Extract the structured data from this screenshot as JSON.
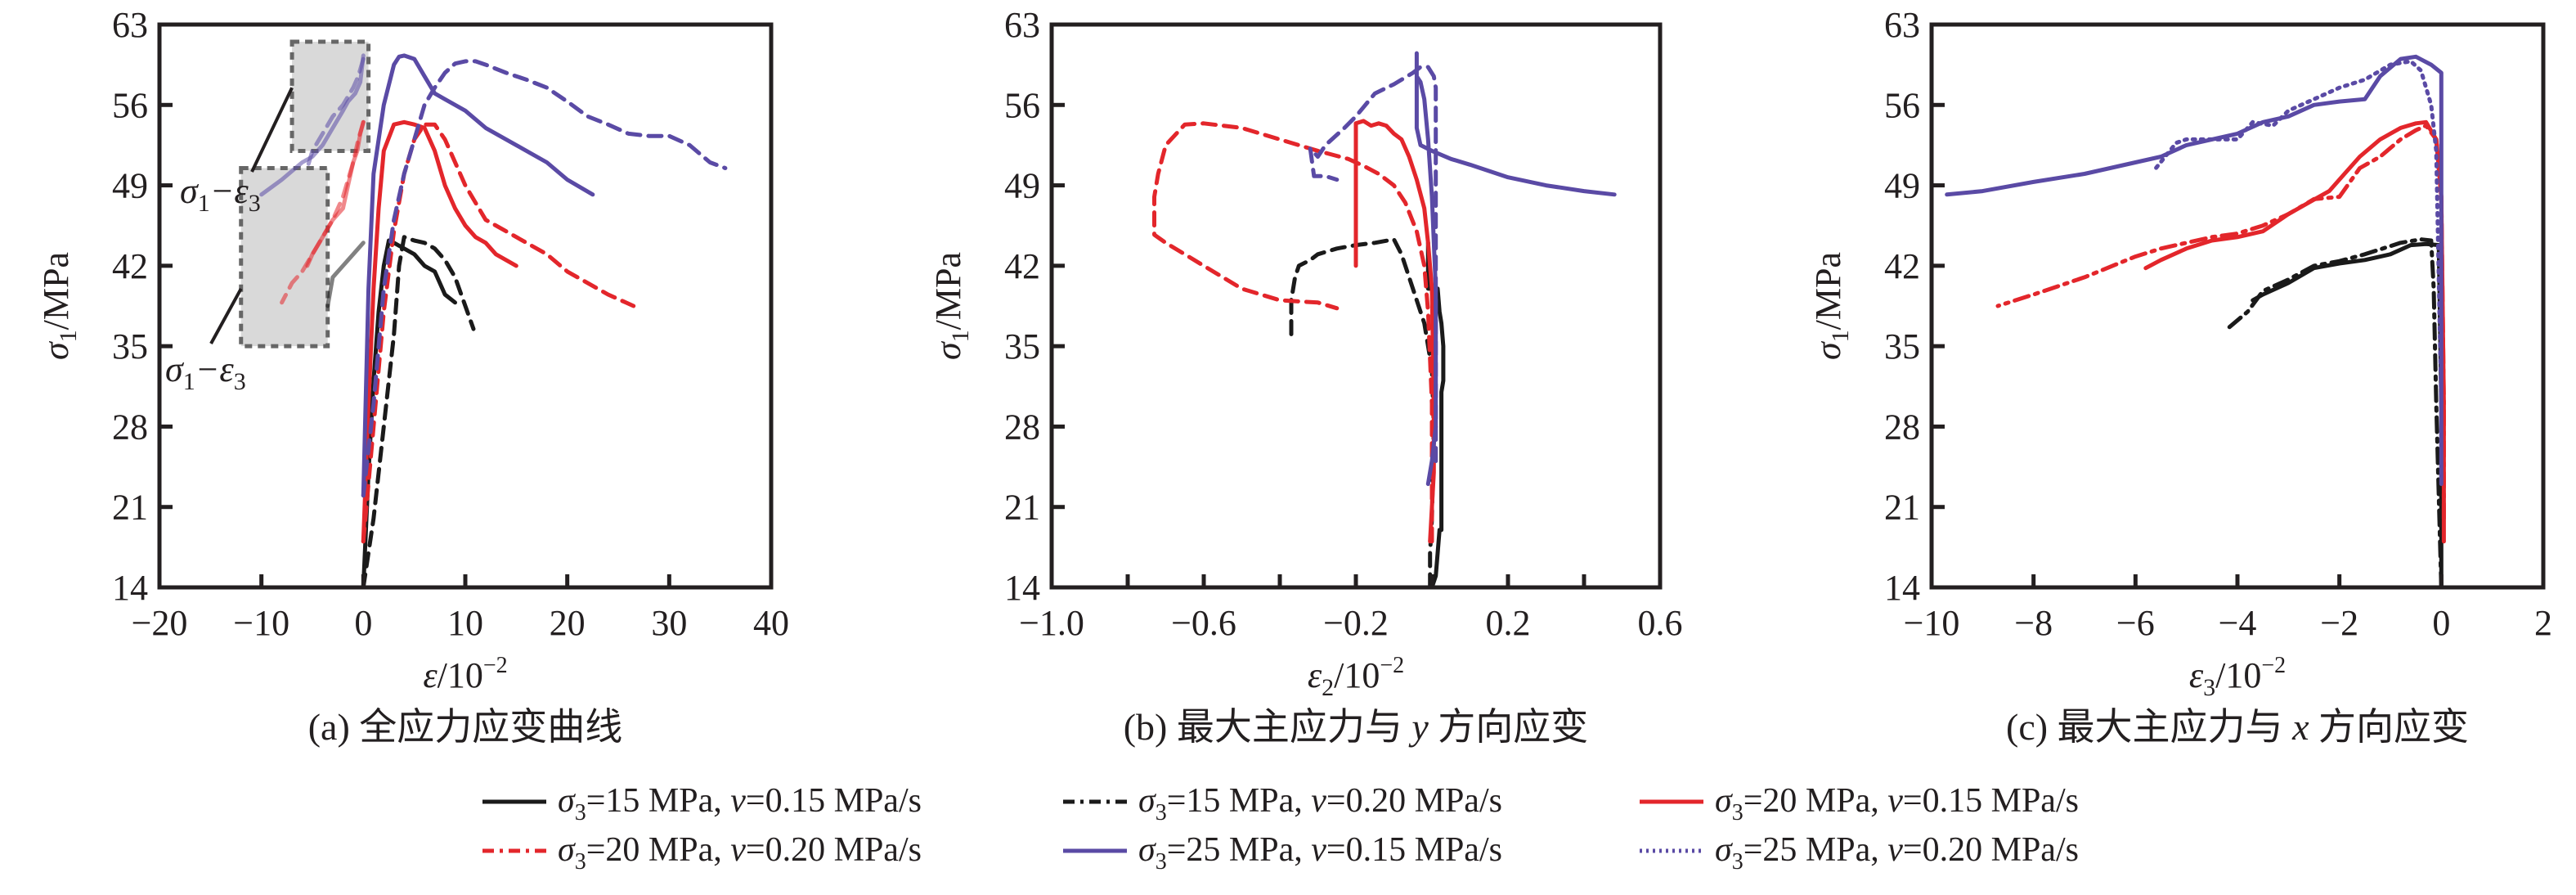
{
  "figure": {
    "legend": [
      {
        "key": "s15_v015",
        "prefix": "σ",
        "sub": "3",
        "text": "=15 MPa, ",
        "v": "v",
        "rest": "=0.15 MPa/s",
        "color": "#1a1a1a",
        "style": "solid"
      },
      {
        "key": "s15_v020",
        "prefix": "σ",
        "sub": "3",
        "text": "=15 MPa, ",
        "v": "v",
        "rest": "=0.20 MPa/s",
        "color": "#1a1a1a",
        "style": "dashdot"
      },
      {
        "key": "s20_v015",
        "prefix": "σ",
        "sub": "3",
        "text": "=20 MPa, ",
        "v": "v",
        "rest": "=0.15 MPa/s",
        "color": "#e3262b",
        "style": "solid"
      },
      {
        "key": "s20_v020",
        "prefix": "σ",
        "sub": "3",
        "text": "=20 MPa, ",
        "v": "v",
        "rest": "=0.20 MPa/s",
        "color": "#e3262b",
        "style": "dashdot"
      },
      {
        "key": "s25_v015",
        "prefix": "σ",
        "sub": "3",
        "text": "=25 MPa, ",
        "v": "v",
        "rest": "=0.15 MPa/s",
        "color": "#5a4aa5",
        "style": "solid"
      },
      {
        "key": "s25_v020",
        "prefix": "σ",
        "sub": "3",
        "text": "=25 MPa, ",
        "v": "v",
        "rest": "=0.20 MPa/s",
        "color": "#5a4aa5",
        "style": "dotted"
      }
    ]
  },
  "chart_data": [
    {
      "type": "line",
      "panel": "a",
      "title": "(a) 全应力应变曲线",
      "xlabel": "ε/10⁻²",
      "xlabel_main": "ε/10",
      "xlabel_sup": "−2",
      "ylabel": "σ₁/MPa",
      "ylabel_main": "σ",
      "ylabel_sub": "1",
      "ylabel_rest": "/MPa",
      "xlim": [
        -20,
        40
      ],
      "ylim": [
        14,
        63
      ],
      "xticks": [
        -20,
        -10,
        0,
        10,
        20,
        30,
        40
      ],
      "xtick_labels": [
        "−20",
        "−10",
        "0",
        "10",
        "20",
        "30",
        "40"
      ],
      "yticks": [
        14,
        21,
        28,
        35,
        42,
        49,
        56,
        63
      ],
      "ytick_labels": [
        "14",
        "21",
        "28",
        "35",
        "42",
        "49",
        "56",
        "63"
      ],
      "annotations": [
        {
          "text_main": "σ",
          "text_sub1": "1",
          "text_dash": "−ε",
          "text_sub2": "3",
          "box_x": [
            -7,
            0.5
          ],
          "box_y": [
            52,
            61.5
          ]
        },
        {
          "text_main": "σ",
          "text_sub1": "1",
          "text_dash": "−ε",
          "text_sub2": "3",
          "box_x": [
            -12,
            -3.5
          ],
          "box_y": [
            35,
            50.5
          ]
        }
      ],
      "series": [
        {
          "key": "s15_v015",
          "x": [
            0,
            0.5,
            1,
            1.5,
            2,
            2.5,
            3,
            4,
            5,
            6,
            7,
            8,
            9
          ],
          "y": [
            14,
            24,
            32,
            38,
            42,
            44.2,
            44,
            43.5,
            43,
            42,
            41.5,
            39.5,
            38.8
          ]
        },
        {
          "key": "s15_v015_lat",
          "faded": true,
          "x": [
            0,
            -0.5,
            -1,
            -2,
            -3,
            -3.5
          ],
          "y": [
            44,
            43.5,
            43,
            42,
            41,
            38.5
          ]
        },
        {
          "key": "s15_v020",
          "x": [
            0,
            1,
            2,
            3,
            3.5,
            4,
            5,
            6,
            7,
            8,
            9,
            10,
            10.8
          ],
          "y": [
            14,
            20,
            28,
            36,
            42,
            44.5,
            44.2,
            44,
            43.5,
            42.5,
            41,
            38.5,
            36.5
          ]
        },
        {
          "key": "s20_v015",
          "x": [
            0,
            0.5,
            1,
            1.5,
            2,
            3,
            4,
            5,
            6,
            7,
            8,
            9,
            10,
            11,
            12,
            13,
            15
          ],
          "y": [
            18,
            30,
            40,
            47,
            52,
            54.3,
            54.5,
            54.3,
            54,
            52,
            49,
            47,
            45.5,
            44.5,
            44,
            43,
            42
          ]
        },
        {
          "key": "s20_v015_lat",
          "faded": true,
          "x": [
            0,
            -0.3,
            -0.6,
            -1,
            -1.5,
            -2,
            -3,
            -4,
            -5,
            -5.5
          ],
          "y": [
            54.5,
            53.5,
            52,
            51,
            49,
            47,
            46,
            44.5,
            43,
            42
          ]
        },
        {
          "key": "s20_v020",
          "x": [
            0,
            1,
            2,
            3,
            4,
            5,
            6,
            7,
            8,
            10,
            12,
            14,
            16,
            18,
            20,
            22,
            24,
            26.5
          ],
          "y": [
            18,
            28,
            38,
            45,
            50,
            53,
            54.3,
            54.3,
            53,
            49,
            46,
            45,
            44,
            43,
            41.5,
            40.5,
            39.5,
            38.5
          ]
        },
        {
          "key": "s20_v020_lat",
          "faded": true,
          "x": [
            0,
            -0.5,
            -1,
            -2,
            -3,
            -4,
            -5,
            -6,
            -7,
            -8
          ],
          "y": [
            54.5,
            53,
            51,
            48,
            46,
            44.5,
            43,
            41.5,
            40.5,
            38.8
          ]
        },
        {
          "key": "s25_v015",
          "x": [
            0,
            0.5,
            1,
            2,
            3,
            3.5,
            4,
            5,
            6,
            7,
            8,
            10,
            12,
            15,
            18,
            20,
            22.5
          ],
          "y": [
            22,
            40,
            50,
            56,
            59.5,
            60.2,
            60.3,
            60,
            58.5,
            57,
            56.5,
            55.5,
            54,
            52.5,
            51,
            49.5,
            48.2
          ]
        },
        {
          "key": "s25_v015_lat",
          "faded": true,
          "x": [
            0,
            -0.3,
            -0.8,
            -1.5,
            -2,
            -3,
            -4,
            -5,
            -6,
            -8,
            -10
          ],
          "y": [
            60.3,
            58,
            57,
            56.3,
            55.5,
            54,
            52.5,
            51.5,
            51,
            49.5,
            48.2
          ]
        },
        {
          "key": "s25_v020",
          "x": [
            0,
            1,
            2,
            3,
            4,
            5,
            6,
            7,
            8,
            9,
            10,
            11,
            12,
            14,
            16,
            18,
            20,
            22,
            24,
            26,
            28,
            30,
            32,
            34,
            35.5
          ],
          "y": [
            22,
            30,
            40,
            46,
            50,
            53,
            56,
            57.5,
            58.8,
            59.6,
            59.8,
            59.8,
            59.5,
            58.8,
            58.2,
            57.5,
            56.3,
            55,
            54.3,
            53.5,
            53.3,
            53.3,
            52.5,
            51,
            50.5
          ]
        },
        {
          "key": "s25_v020_lat",
          "faded": true,
          "x": [
            0,
            -0.5,
            -1,
            -2,
            -3,
            -4,
            -5,
            -5.5
          ],
          "y": [
            60,
            58.5,
            57.5,
            56,
            55,
            53.5,
            52,
            50.5
          ]
        }
      ]
    },
    {
      "type": "line",
      "panel": "b",
      "title": "(b) 最大主应力与 y 方向应变",
      "title_pre": "(b) 最大主应力与 ",
      "title_var": "y",
      "title_post": " 方向应变",
      "xlabel": "ε₂/10⁻²",
      "xlabel_main": "ε",
      "xlabel_sub": "2",
      "xlabel_rest": "/10",
      "xlabel_sup": "−2",
      "ylabel": "σ₁/MPa",
      "xlim": [
        -1.0,
        0.6
      ],
      "ylim": [
        14,
        63
      ],
      "xticks": [
        -1.0,
        -0.6,
        -0.2,
        0.2,
        0.6
      ],
      "xtick_labels": [
        "−1.0",
        "−0.6",
        "−0.2",
        "0.2",
        "0.6"
      ],
      "minor_xticks": [
        -0.8,
        -0.4,
        0.0,
        0.4
      ],
      "yticks": [
        14,
        21,
        28,
        35,
        42,
        49,
        56,
        63
      ],
      "ytick_labels": [
        "14",
        "21",
        "28",
        "35",
        "42",
        "49",
        "56",
        "63"
      ],
      "series": [
        {
          "key": "s15_v015",
          "x": [
            0.0,
            0.01,
            0.015,
            0.02,
            0.025,
            0.025,
            0.03,
            0.03,
            0.025,
            0.02,
            0.015,
            -0.01,
            -0.01
          ],
          "y": [
            14,
            15,
            17,
            19,
            19,
            31,
            32,
            35,
            37,
            38,
            40,
            40,
            44
          ]
        },
        {
          "key": "s15_v020",
          "x": [
            -0.005,
            -0.005,
            0.0,
            0.005,
            0.0,
            -0.01,
            -0.02,
            -0.04,
            -0.06,
            -0.08,
            -0.1,
            -0.15,
            -0.2,
            -0.25,
            -0.3,
            -0.32,
            -0.35,
            -0.36,
            -0.37,
            -0.37
          ],
          "y": [
            14,
            17,
            20,
            28,
            33,
            35,
            37,
            39,
            41,
            43,
            44.3,
            44,
            43.8,
            43.5,
            43,
            42.5,
            42,
            41,
            39,
            36
          ]
        },
        {
          "key": "s20_v015",
          "x": [
            -0.005,
            0.0,
            0.005,
            0.005,
            0.0,
            -0.01,
            -0.02,
            -0.04,
            -0.06,
            -0.08,
            -0.1,
            -0.12,
            -0.14,
            -0.16,
            -0.18,
            -0.2,
            -0.2,
            -0.2
          ],
          "y": [
            18,
            21,
            24,
            30,
            40,
            44,
            47,
            49.5,
            51.5,
            53,
            53.5,
            54.2,
            54.4,
            54.2,
            54.6,
            54.4,
            45,
            42
          ]
        },
        {
          "key": "s20_v020",
          "x": [
            0.0,
            0.0,
            -0.01,
            -0.02,
            -0.04,
            -0.07,
            -0.1,
            -0.14,
            -0.18,
            -0.22,
            -0.3,
            -0.4,
            -0.5,
            -0.6,
            -0.65,
            -0.7,
            -0.72,
            -0.73,
            -0.73,
            -0.7,
            -0.6,
            -0.5,
            -0.4,
            -0.3,
            -0.25
          ],
          "y": [
            18,
            30,
            38,
            42,
            45,
            47.5,
            49,
            50,
            50.7,
            51.3,
            52,
            53,
            54,
            54.4,
            54.3,
            52.5,
            50,
            48,
            44.7,
            44,
            42,
            40,
            39,
            38.8,
            38.3
          ]
        },
        {
          "key": "s25_v015",
          "x": [
            -0.01,
            0.0,
            0.01,
            0.01,
            0.0,
            -0.01,
            -0.02,
            -0.03,
            -0.04,
            -0.04,
            -0.04,
            -0.03,
            0.0,
            0.05,
            0.1,
            0.2,
            0.3,
            0.4,
            0.48
          ],
          "y": [
            23,
            25,
            28,
            40,
            48,
            53,
            56.5,
            58,
            58.5,
            60.5,
            54,
            52.5,
            52,
            51.3,
            50.8,
            49.7,
            49,
            48.5,
            48.2
          ]
        },
        {
          "key": "s25_v020",
          "x": [
            0.01,
            0.01,
            0.01,
            0.005,
            -0.01,
            -0.03,
            -0.05,
            -0.1,
            -0.15,
            -0.2,
            -0.23,
            -0.28,
            -0.3,
            -0.32,
            -0.31,
            -0.28,
            -0.25
          ],
          "y": [
            25,
            35,
            57.5,
            58.5,
            59.3,
            59.3,
            58.8,
            57.8,
            57,
            55,
            54,
            52.5,
            51.5,
            52.2,
            49.8,
            49.8,
            49.5
          ]
        }
      ]
    },
    {
      "type": "line",
      "panel": "c",
      "title": "(c) 最大主应力与 x 方向应变",
      "title_pre": "(c) 最大主应力与 ",
      "title_var": "x",
      "title_post": " 方向应变",
      "xlabel": "ε₃/10⁻²",
      "xlabel_main": "ε",
      "xlabel_sub": "3",
      "xlabel_rest": "/10",
      "xlabel_sup": "−2",
      "ylabel": "σ₁/MPa",
      "xlim": [
        -10,
        2
      ],
      "ylim": [
        14,
        63
      ],
      "xticks": [
        -10,
        -8,
        -6,
        -4,
        -2,
        0,
        2
      ],
      "xtick_labels": [
        "−10",
        "−8",
        "−6",
        "−4",
        "−2",
        "0",
        "2"
      ],
      "yticks": [
        14,
        21,
        28,
        35,
        42,
        49,
        56,
        63
      ],
      "ytick_labels": [
        "14",
        "21",
        "28",
        "35",
        "42",
        "49",
        "56",
        "63"
      ],
      "series": [
        {
          "key": "s15_v015",
          "x": [
            0,
            0,
            -0.05,
            -0.3,
            -0.6,
            -1,
            -1.5,
            -2,
            -2.5,
            -3,
            -3.5,
            -3.7
          ],
          "y": [
            14,
            30,
            43.8,
            43.9,
            43.8,
            43,
            42.5,
            42.2,
            41.8,
            40.5,
            39.5,
            39
          ]
        },
        {
          "key": "s15_v020",
          "x": [
            0,
            -0.1,
            -0.15,
            -0.2,
            -0.4,
            -0.8,
            -1.5,
            -2,
            -2.5,
            -3,
            -3.5,
            -3.8,
            -4.2
          ],
          "y": [
            14,
            30,
            40,
            44.2,
            44.3,
            44,
            43,
            42.4,
            42,
            40.8,
            39.8,
            38,
            36.5
          ]
        },
        {
          "key": "s20_v015",
          "x": [
            0.05,
            0.05,
            0,
            -0.1,
            -0.3,
            -0.5,
            -0.8,
            -1.2,
            -1.6,
            -1.9,
            -2.2,
            -2.6,
            -3,
            -3.5,
            -4,
            -4.5,
            -5,
            -5.5,
            -5.8
          ],
          "y": [
            18,
            30,
            48,
            53,
            54.5,
            54.4,
            54,
            53,
            51.5,
            50,
            48.5,
            47.5,
            46.5,
            45,
            44.5,
            44.2,
            43.5,
            42.5,
            41.8
          ]
        },
        {
          "key": "s20_v020",
          "x": [
            0.05,
            0.05,
            0,
            -0.1,
            -0.3,
            -0.5,
            -0.8,
            -1.2,
            -1.6,
            -2,
            -2.5,
            -3,
            -3.5,
            -4,
            -4.5,
            -5,
            -5.5,
            -6,
            -7,
            -8,
            -8.7
          ],
          "y": [
            20,
            30,
            48,
            53,
            54.2,
            53.8,
            53,
            51.5,
            50.5,
            48,
            47.8,
            46.5,
            45.5,
            44.8,
            44.5,
            44,
            43.5,
            42.8,
            41,
            39.5,
            38.5
          ]
        },
        {
          "key": "s25_v015",
          "x": [
            0,
            0,
            0,
            -0.2,
            -0.5,
            -0.8,
            -1.2,
            -1.5,
            -2,
            -2.5,
            -3,
            -3.5,
            -4,
            -4.5,
            -5,
            -5.5,
            -6,
            -6.5,
            -7,
            -8,
            -9,
            -9.7
          ],
          "y": [
            23,
            50,
            58.8,
            59.5,
            60.2,
            60,
            58.5,
            56.5,
            56.3,
            56,
            55,
            54.5,
            53.5,
            53,
            52.5,
            51.5,
            51,
            50.5,
            50,
            49.3,
            48.5,
            48.2
          ]
        },
        {
          "key": "s25_v020",
          "x": [
            0,
            -0.1,
            -0.2,
            -0.4,
            -0.6,
            -1,
            -1.5,
            -2,
            -2.5,
            -3,
            -3.3,
            -3.7,
            -4,
            -4.5,
            -5,
            -5.2,
            -5.6
          ],
          "y": [
            30,
            52,
            56,
            59,
            59.8,
            59.5,
            58.2,
            57.5,
            56.5,
            55.5,
            54.2,
            54.5,
            53,
            53,
            53,
            52.7,
            50.5
          ]
        }
      ]
    }
  ]
}
